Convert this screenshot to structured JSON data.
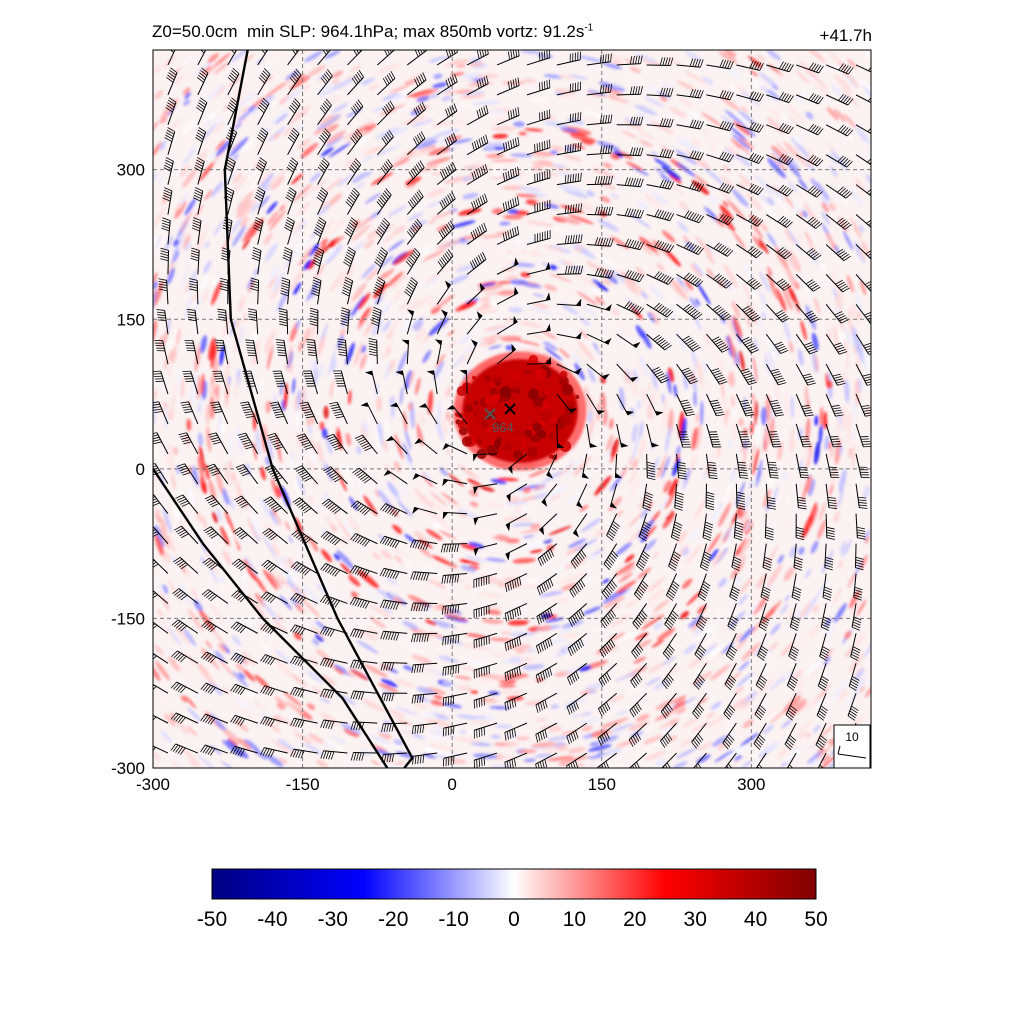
{
  "header": {
    "z0": "Z0=50.0cm",
    "slp": "min SLP: 964.1hPa;",
    "vort": "max 850mb vortz:  91.2s",
    "vort_exp": "-1",
    "time": "+41.7h"
  },
  "chart_data": {
    "type": "heatmap",
    "title": "Z0=50.0cm  min SLP: 964.1hPa; max 850mb vortz:  91.2s-1",
    "time_label": "+41.7h",
    "xlim": [
      -300,
      420
    ],
    "ylim": [
      -300,
      420
    ],
    "xticks": [
      -300,
      -150,
      0,
      150,
      300
    ],
    "yticks": [
      -300,
      -150,
      0,
      150,
      300
    ],
    "grid": true,
    "grid_style": "dashed",
    "center_label": "964",
    "markers": [
      {
        "name": "min SLP",
        "x": 38,
        "y": 55,
        "color": "#555555"
      },
      {
        "name": "vortex center",
        "x": 58,
        "y": 60,
        "color": "#000000"
      }
    ],
    "eye_region": {
      "x": 68,
      "y": 58,
      "rx": 58,
      "ry": 52,
      "value": 45
    },
    "coastlines": [
      [
        [
          -205,
          420
        ],
        [
          -228,
          300
        ],
        [
          -222,
          150
        ],
        [
          -180,
          0
        ],
        [
          -115,
          -150
        ],
        [
          -40,
          -290
        ],
        [
          -48,
          -300
        ]
      ],
      [
        [
          -300,
          0
        ],
        [
          -250,
          -75
        ],
        [
          -190,
          -150
        ],
        [
          -110,
          -230
        ],
        [
          -65,
          -300
        ]
      ]
    ],
    "colorbar": {
      "min": -50,
      "max": 50,
      "ticks": [
        -50,
        -40,
        -30,
        -20,
        -10,
        0,
        10,
        20,
        30,
        40,
        50
      ],
      "tick_labels": [
        "-50",
        "-40",
        "-30",
        "-20",
        "-10",
        "0",
        "10",
        "20",
        "30",
        "40",
        "50"
      ],
      "colors": [
        "#000080",
        "#0000ff",
        "#ffffff",
        "#ff0000",
        "#800000"
      ]
    },
    "reference_barb": {
      "label": "10",
      "speed": 10
    },
    "wind_barbs": {
      "spacing": 30,
      "center": [
        60,
        60
      ],
      "circulation": "cyclonic"
    }
  }
}
